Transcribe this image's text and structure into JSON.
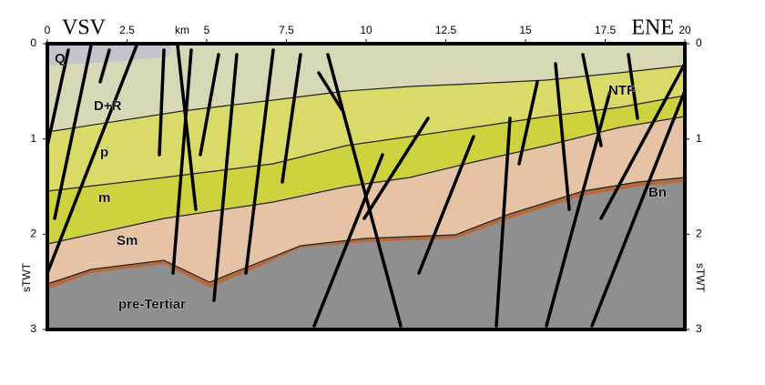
{
  "header": {
    "left": "VSV",
    "right": "ENE"
  },
  "x_axis": {
    "unit": "km",
    "ticks": [
      0,
      2.5,
      5,
      7.5,
      10,
      12.5,
      15,
      17.5,
      20
    ]
  },
  "y_axis": {
    "unit": "sTWT",
    "ticks": [
      0,
      1,
      2,
      3
    ]
  },
  "layers": [
    "Q",
    "D+R",
    "p",
    "m",
    "Sm",
    "pre-Tertiar",
    "NTF",
    "Bn"
  ]
}
